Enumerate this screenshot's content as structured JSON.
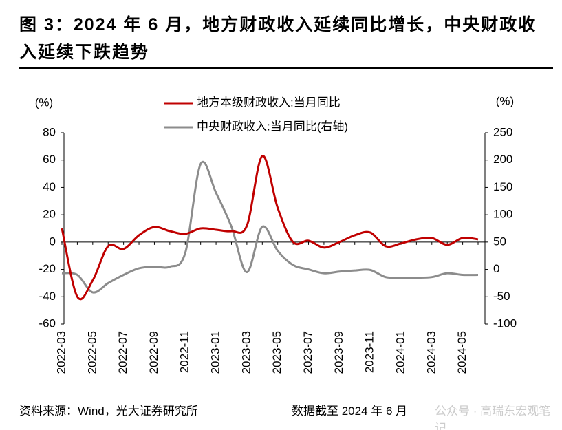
{
  "chart_data": {
    "type": "line",
    "title": "图 3：2024 年 6 月，地方财政收入延续同比增长，中央财政收入延续下跌趋势",
    "y_unit": "(%)",
    "y2_unit": "(%)",
    "source": "资料来源：Wind，光大证券研究所",
    "note": "数据截至 2024 年 6 月",
    "watermark": "公众号 · 高瑞东宏观笔记",
    "categories": [
      "2022-03",
      null,
      "2022-05",
      null,
      "2022-07",
      null,
      "2022-09",
      null,
      "2022-11",
      null,
      "2023-01",
      null,
      "2023-03",
      null,
      "2023-05",
      null,
      "2023-07",
      null,
      "2023-09",
      null,
      "2023-11",
      null,
      "2024-01",
      null,
      "2024-03",
      null,
      "2024-05",
      null
    ],
    "series": [
      {
        "name": "地方本级财政收入:当月同比",
        "color": "#c00000",
        "values": [
          10,
          -40,
          -28,
          -3,
          -5,
          5,
          11,
          8,
          6,
          10,
          9,
          8,
          12,
          63,
          25,
          0,
          1,
          -4,
          0,
          5,
          7,
          -3,
          -1,
          2,
          3,
          -2,
          3,
          2
        ]
      },
      {
        "name": "中央财政收入:当月同比(右轴)",
        "color": "#8c8c8c",
        "axis": "y2",
        "values": [
          -7,
          -10,
          -42,
          -25,
          -10,
          2,
          5,
          5,
          30,
          193,
          140,
          78,
          -5,
          78,
          34,
          8,
          0,
          -7,
          -4,
          -2,
          -1,
          -14,
          -15,
          -15,
          -14,
          -7,
          -10,
          -10
        ]
      }
    ],
    "ylim": [
      -60,
      80
    ],
    "yticks": [
      -60,
      -40,
      -20,
      0,
      20,
      40,
      60,
      80
    ],
    "y2lim": [
      -100,
      250
    ],
    "y2ticks": [
      -100,
      -50,
      0,
      50,
      100,
      150,
      200,
      250
    ]
  }
}
